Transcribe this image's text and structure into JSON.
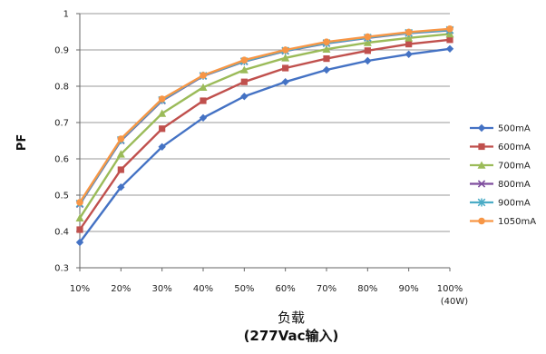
{
  "chart_data": {
    "type": "line",
    "title": "",
    "ylabel": "PF",
    "xlabel_line1": "负载",
    "xlabel_line2": "(277Vac输入)",
    "x_last_note": "(40W)",
    "categories": [
      "10%",
      "20%",
      "30%",
      "40%",
      "50%",
      "60%",
      "70%",
      "80%",
      "90%",
      "100%"
    ],
    "y_ticks": [
      "0.3",
      "0.4",
      "0.5",
      "0.6",
      "0.7",
      "0.8",
      "0.9",
      "1"
    ],
    "ylim": [
      0.3,
      1.0
    ],
    "grid": "horizontal",
    "legend_position": "right",
    "series": [
      {
        "name": "500mA",
        "color": "#4472C4",
        "marker": "diamond",
        "values": [
          0.37,
          0.522,
          0.633,
          0.713,
          0.772,
          0.812,
          0.845,
          0.87,
          0.888,
          0.903
        ]
      },
      {
        "name": "600mA",
        "color": "#C0504D",
        "marker": "square",
        "values": [
          0.405,
          0.57,
          0.683,
          0.76,
          0.812,
          0.85,
          0.876,
          0.898,
          0.916,
          0.928
        ]
      },
      {
        "name": "700mA",
        "color": "#9BBB59",
        "marker": "triangle",
        "values": [
          0.437,
          0.613,
          0.725,
          0.797,
          0.845,
          0.878,
          0.902,
          0.92,
          0.933,
          0.944
        ]
      },
      {
        "name": "800mA",
        "color": "#7F4F9F",
        "marker": "x",
        "values": [
          0.475,
          0.65,
          0.76,
          0.828,
          0.868,
          0.897,
          0.918,
          0.933,
          0.946,
          0.954
        ]
      },
      {
        "name": "900mA",
        "color": "#4BACC6",
        "marker": "star",
        "values": [
          0.477,
          0.652,
          0.762,
          0.829,
          0.869,
          0.898,
          0.919,
          0.934,
          0.947,
          0.955
        ]
      },
      {
        "name": "1050mA",
        "color": "#F79646",
        "marker": "circle",
        "values": [
          0.48,
          0.655,
          0.765,
          0.83,
          0.872,
          0.9,
          0.922,
          0.936,
          0.949,
          0.958
        ]
      }
    ]
  }
}
